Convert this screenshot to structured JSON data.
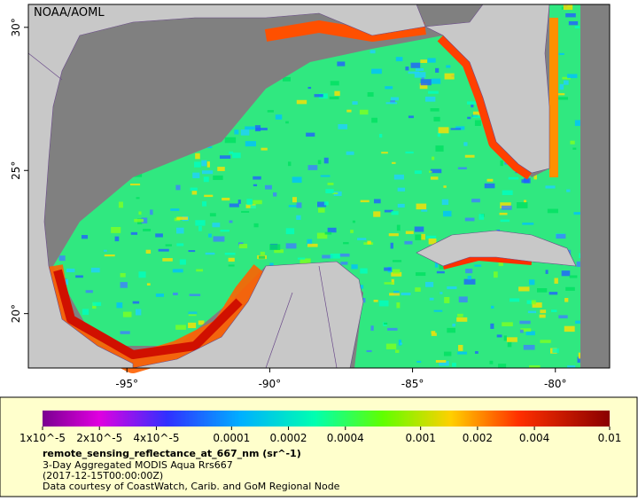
{
  "map": {
    "credit": "NOAA/AOML",
    "lon_range": [
      -98.45,
      -78.1
    ],
    "lat_range": [
      18.1,
      30.8
    ],
    "x_ticks": [
      {
        "value": -95,
        "label": "-95°"
      },
      {
        "value": -90,
        "label": "-90°"
      },
      {
        "value": -85,
        "label": "-85°"
      },
      {
        "value": -80,
        "label": "-80°"
      }
    ],
    "y_ticks": [
      {
        "value": 20,
        "label": "20°"
      },
      {
        "value": 25,
        "label": "25°"
      },
      {
        "value": 30,
        "label": "30°"
      }
    ]
  },
  "legend": {
    "log_scale": true,
    "range": [
      1e-05,
      0.01
    ],
    "ticks": [
      {
        "value": 1e-05,
        "label": "1x10^-5"
      },
      {
        "value": 2e-05,
        "label": "2x10^-5"
      },
      {
        "value": 4e-05,
        "label": "4x10^-5"
      },
      {
        "value": 0.0001,
        "label": "0.0001"
      },
      {
        "value": 0.0002,
        "label": "0.0002"
      },
      {
        "value": 0.0004,
        "label": "0.0004"
      },
      {
        "value": 0.001,
        "label": "0.001"
      },
      {
        "value": 0.002,
        "label": "0.002"
      },
      {
        "value": 0.004,
        "label": "0.004"
      },
      {
        "value": 0.01,
        "label": "0.01"
      }
    ],
    "variable": "remote_sensing_reflectance_at_667_nm (sr^-1)",
    "lines": [
      "3-Day Aggregated MODIS Aqua Rrs667",
      "(2017-12-15T00:00:00Z)",
      "Data courtesy of CoastWatch, Carib. and GoM Regional Node"
    ]
  }
}
